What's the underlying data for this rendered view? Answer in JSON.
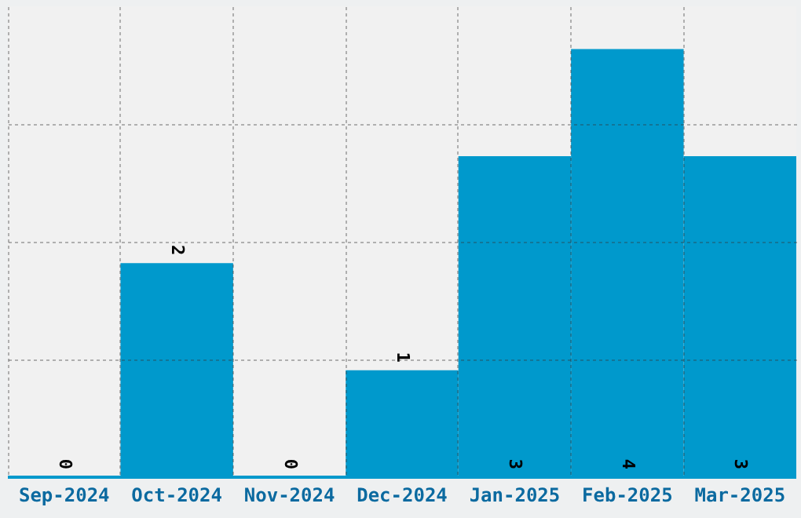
{
  "chart_data": {
    "type": "bar",
    "categories": [
      "Sep-2024",
      "Oct-2024",
      "Nov-2024",
      "Dec-2024",
      "Jan-2025",
      "Feb-2025",
      "Mar-2025"
    ],
    "values": [
      0,
      2,
      0,
      1,
      3,
      4,
      3
    ],
    "color": "#0099cc",
    "ylim": [
      0,
      4.4
    ],
    "yticks": [
      {
        "value": 1.1,
        "label": null
      },
      {
        "value": 2.2,
        "label": null
      },
      {
        "value": 3.3,
        "label": null
      }
    ],
    "grid": true,
    "data_labels": true,
    "tick_labels": "x"
  }
}
